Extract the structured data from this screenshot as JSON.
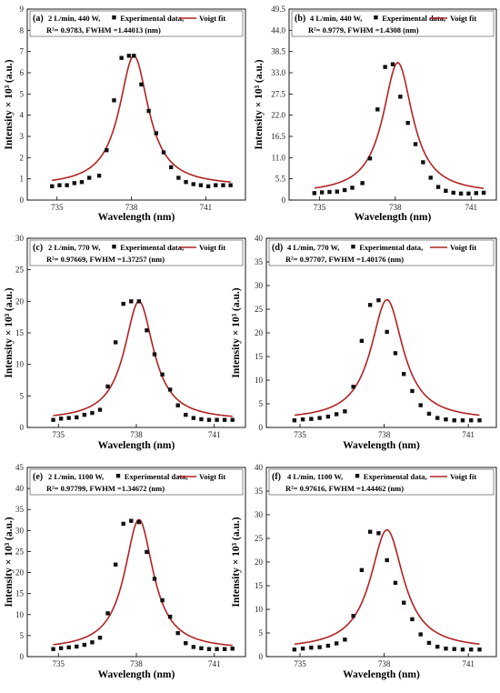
{
  "colors": {
    "fit": "#b22222",
    "points": "#111111",
    "axis": "#000000"
  },
  "chart_data": [
    {
      "type": "scatter",
      "panel_label": "(a)",
      "legend_condition": "2 L/min, 440 W,",
      "legend_data": "Experimental data,",
      "legend_fit": "Voigt fit",
      "stats_text": "R²= 0.9783, FWHM =1.44013 (nm)",
      "xlabel": "Wavelength (nm)",
      "ylabel": "Intensity × 10³ (a.u.)",
      "xlim": [
        733.8,
        742.6
      ],
      "ylim": [
        0,
        9
      ],
      "xticks": [
        735,
        738,
        741
      ],
      "yticks": [
        0,
        1,
        2,
        3,
        4,
        5,
        6,
        7,
        8,
        9
      ],
      "fit": {
        "center": 738.1,
        "fwhm": 1.44,
        "amplitude": 6.15,
        "baseline": 0.65
      },
      "series": [
        {
          "name": "Experimental data",
          "x": [
            734.8,
            735.1,
            735.4,
            735.7,
            736.0,
            736.3,
            736.7,
            737.0,
            737.3,
            737.6,
            737.9,
            738.1,
            738.4,
            738.7,
            739.0,
            739.3,
            739.6,
            739.9,
            740.2,
            740.5,
            740.8,
            741.1,
            741.4,
            741.7,
            742.0
          ],
          "y": [
            0.65,
            0.7,
            0.7,
            0.8,
            0.85,
            1.05,
            1.15,
            2.35,
            4.7,
            6.7,
            6.8,
            6.8,
            5.45,
            4.2,
            3.15,
            2.25,
            1.55,
            1.05,
            0.85,
            0.75,
            0.7,
            0.65,
            0.7,
            0.7,
            0.7
          ]
        }
      ]
    },
    {
      "type": "scatter",
      "panel_label": "(b)",
      "legend_condition": "4 L/min, 440 W,",
      "legend_data": "Experimental data,",
      "legend_fit": "Voigt fit",
      "stats_text": "R²= 0.9779, FWHM =1.4308 (nm)",
      "xlabel": "Wavelength (nm)",
      "ylabel": "Intensity × 10³ (a.u.)",
      "xlim": [
        733.8,
        742.0
      ],
      "ylim": [
        0,
        49.5
      ],
      "xticks": [
        735,
        738,
        741
      ],
      "yticks": [
        0,
        5.5,
        11.0,
        16.5,
        22.0,
        27.5,
        33.0,
        38.5,
        44.0,
        49.5
      ],
      "ytick_labels": [
        "0",
        "5.5",
        "11.0",
        "16.5",
        "22.0",
        "27.5",
        "33.0",
        "38.5",
        "44.0",
        "49.5"
      ],
      "fit": {
        "center": 738.1,
        "fwhm": 1.43,
        "amplitude": 34.0,
        "baseline": 1.6
      },
      "series": [
        {
          "name": "Experimental data",
          "x": [
            734.8,
            735.1,
            735.4,
            735.7,
            736.0,
            736.3,
            736.7,
            737.0,
            737.3,
            737.6,
            737.9,
            738.2,
            738.5,
            738.8,
            739.1,
            739.4,
            739.7,
            740.0,
            740.3,
            740.6,
            740.9,
            741.2,
            741.5
          ],
          "y": [
            1.8,
            2.0,
            2.1,
            2.2,
            2.6,
            3.2,
            4.4,
            10.8,
            23.5,
            34.5,
            35.2,
            26.8,
            20.0,
            14.5,
            9.8,
            5.8,
            3.4,
            2.4,
            1.9,
            1.7,
            1.7,
            1.8,
            1.9
          ]
        }
      ]
    },
    {
      "type": "scatter",
      "panel_label": "(c)",
      "legend_condition": "2 L/min, 770 W,",
      "legend_data": "Experimental data,",
      "legend_fit": "Voigt fit",
      "stats_text": "R²= 0.97669, FWHM =1.37257 (nm)",
      "xlabel": "Wavelength (nm)",
      "ylabel": "Intensity × 10³ (a.u.)",
      "xlim": [
        733.8,
        742.2
      ],
      "ylim": [
        0,
        30
      ],
      "xticks": [
        735,
        738,
        741
      ],
      "yticks": [
        0,
        5,
        10,
        15,
        20,
        25,
        30
      ],
      "fit": {
        "center": 738.1,
        "fwhm": 1.37,
        "amplitude": 18.9,
        "baseline": 1.1
      },
      "series": [
        {
          "name": "Experimental data",
          "x": [
            734.8,
            735.1,
            735.4,
            735.7,
            736.0,
            736.3,
            736.6,
            736.9,
            737.2,
            737.5,
            737.8,
            738.1,
            738.4,
            738.7,
            739.0,
            739.3,
            739.6,
            739.9,
            740.2,
            740.5,
            740.8,
            741.1,
            741.4,
            741.7
          ],
          "y": [
            1.2,
            1.4,
            1.5,
            1.6,
            2.0,
            2.3,
            2.8,
            6.5,
            13.5,
            19.6,
            20.0,
            20.0,
            15.4,
            11.6,
            8.4,
            6.0,
            3.5,
            2.0,
            1.5,
            1.3,
            1.2,
            1.2,
            1.2,
            1.2
          ]
        }
      ]
    },
    {
      "type": "scatter",
      "panel_label": "(d)",
      "legend_condition": "4 L/min, 770 W,",
      "legend_data": "Experimental data,",
      "legend_fit": "Voigt fit",
      "stats_text": "R²= 0.97707, FWHM =1.40176 (nm)",
      "xlabel": "Wavelength (nm)",
      "ylabel": "Intensity × 10³ (a.u.)",
      "xlim": [
        733.8,
        742.0
      ],
      "ylim": [
        0,
        40
      ],
      "xticks": [
        735,
        738,
        741
      ],
      "yticks": [
        0,
        5,
        10,
        15,
        20,
        25,
        30,
        35,
        40
      ],
      "fit": {
        "center": 738.1,
        "fwhm": 1.4,
        "amplitude": 25.5,
        "baseline": 1.5
      },
      "series": [
        {
          "name": "Experimental data",
          "x": [
            734.8,
            735.1,
            735.4,
            735.7,
            736.0,
            736.3,
            736.6,
            736.9,
            737.2,
            737.5,
            737.8,
            738.1,
            738.4,
            738.7,
            739.0,
            739.3,
            739.6,
            739.9,
            740.2,
            740.5,
            740.8,
            741.1,
            741.4
          ],
          "y": [
            1.5,
            1.7,
            1.8,
            2.0,
            2.3,
            2.8,
            3.4,
            8.6,
            18.3,
            25.9,
            26.9,
            20.2,
            15.7,
            11.3,
            7.7,
            4.7,
            2.9,
            2.0,
            1.7,
            1.5,
            1.5,
            1.5,
            1.5
          ]
        }
      ]
    },
    {
      "type": "scatter",
      "panel_label": "(e)",
      "legend_condition": "2 L/min, 1100 W,",
      "legend_data": "Experimental data,",
      "legend_fit": "Voigt fit",
      "stats_text": "R²= 0.97799, FWHM =1.34672 (nm)",
      "xlabel": "Wavelength (nm)",
      "ylabel": "Intensity × 10³ (a.u.)",
      "xlim": [
        733.8,
        742.2
      ],
      "ylim": [
        0,
        45
      ],
      "xticks": [
        735,
        738,
        741
      ],
      "yticks": [
        0,
        5,
        10,
        15,
        20,
        25,
        30,
        35,
        40,
        45
      ],
      "fit": {
        "center": 738.1,
        "fwhm": 1.35,
        "amplitude": 31.0,
        "baseline": 1.6
      },
      "series": [
        {
          "name": "Experimental data",
          "x": [
            734.8,
            735.1,
            735.4,
            735.7,
            736.0,
            736.3,
            736.6,
            736.9,
            737.2,
            737.5,
            737.8,
            738.1,
            738.4,
            738.7,
            739.0,
            739.3,
            739.6,
            739.9,
            740.2,
            740.5,
            740.8,
            741.1,
            741.4,
            741.7
          ],
          "y": [
            1.8,
            2.0,
            2.2,
            2.4,
            2.8,
            3.4,
            4.5,
            10.3,
            21.9,
            31.6,
            32.3,
            32.0,
            24.9,
            18.5,
            13.4,
            9.5,
            5.6,
            3.2,
            2.3,
            2.0,
            1.8,
            1.8,
            1.8,
            1.9
          ]
        }
      ]
    },
    {
      "type": "scatter",
      "panel_label": "(f)",
      "legend_condition": "4 L/min, 1100 W,",
      "legend_data": "Experimental data,",
      "legend_fit": "Voigt fit",
      "stats_text": "R²= 0.97616, FWHM =1.44462 (nm)",
      "xlabel": "Wavelength (nm)",
      "ylabel": "Intensity × 10³ (a.u.)",
      "xlim": [
        733.8,
        742.0
      ],
      "ylim": [
        0,
        40
      ],
      "xticks": [
        735,
        738,
        741
      ],
      "yticks": [
        0,
        5,
        10,
        15,
        20,
        25,
        30,
        35,
        40
      ],
      "fit": {
        "center": 738.1,
        "fwhm": 1.44,
        "amplitude": 25.3,
        "baseline": 1.5
      },
      "series": [
        {
          "name": "Experimental data",
          "x": [
            734.8,
            735.1,
            735.4,
            735.7,
            736.0,
            736.3,
            736.6,
            736.9,
            737.2,
            737.5,
            737.8,
            738.1,
            738.4,
            738.7,
            739.0,
            739.3,
            739.6,
            739.9,
            740.2,
            740.5,
            740.8,
            741.1,
            741.4
          ],
          "y": [
            1.5,
            1.7,
            1.9,
            2.0,
            2.3,
            2.8,
            3.6,
            8.6,
            18.3,
            26.4,
            26.1,
            20.4,
            15.6,
            11.4,
            7.9,
            4.7,
            2.9,
            2.1,
            1.7,
            1.6,
            1.5,
            1.5,
            1.5
          ]
        }
      ]
    }
  ]
}
